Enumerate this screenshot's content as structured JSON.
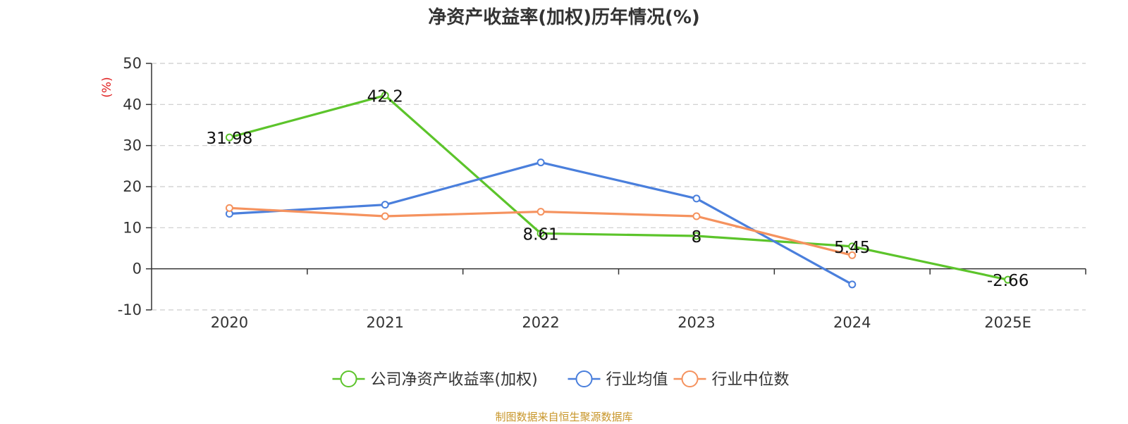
{
  "chart_data": {
    "type": "line",
    "title": "净资产收益率(加权)历年情况(%)",
    "ylabel": "(%)",
    "xlabel": "",
    "categories": [
      "2020",
      "2021",
      "2022",
      "2023",
      "2024",
      "2025E"
    ],
    "yticks": [
      "50",
      "40",
      "30",
      "20",
      "10",
      "0",
      "-10"
    ],
    "ylim": [
      -10,
      50
    ],
    "grid": true,
    "legend_position": "bottom-center",
    "series": [
      {
        "name": "公司净资产收益率(加权)",
        "color": "#5cc42b",
        "values": [
          31.98,
          42.2,
          8.61,
          8,
          5.45,
          -2.66
        ],
        "labels": [
          "31.98",
          "42.2",
          "8.61",
          "8",
          "5.45",
          "-2.66"
        ]
      },
      {
        "name": "行业均值",
        "color": "#4a7fdc",
        "values": [
          13.4,
          15.6,
          25.9,
          17.1,
          -3.8,
          null
        ]
      },
      {
        "name": "行业中位数",
        "color": "#f5925e",
        "values": [
          14.8,
          12.8,
          13.9,
          12.8,
          3.3,
          null
        ]
      }
    ]
  },
  "footer": {
    "source": "制图数据来自恒生聚源数据库"
  },
  "colors": {
    "axis": "#333333",
    "grid": "#cccccc",
    "ylabel": "#e02020"
  }
}
